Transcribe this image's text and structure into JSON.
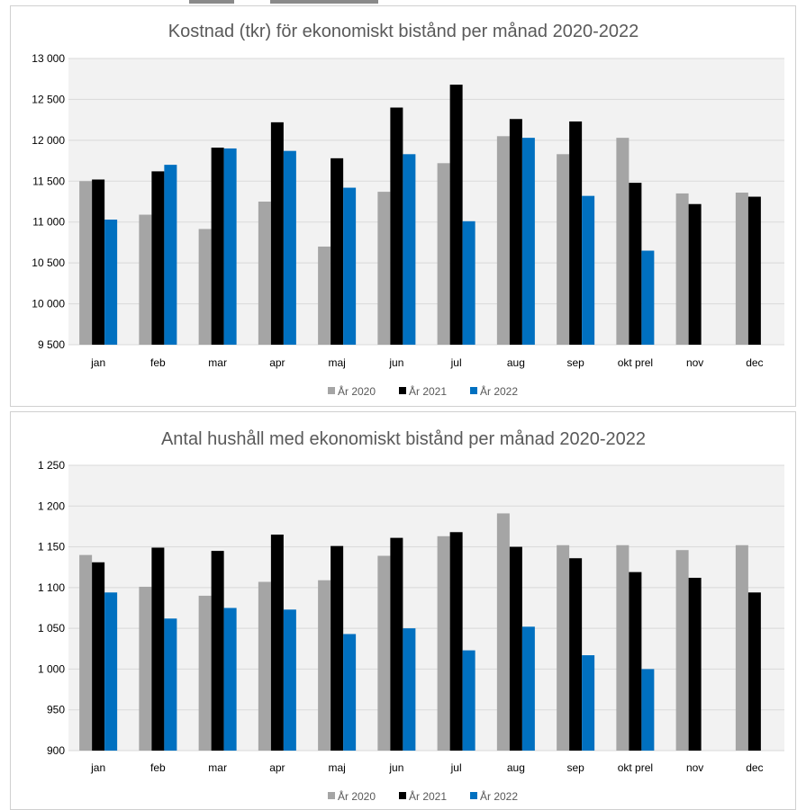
{
  "colors": {
    "ar2020": "#a5a5a5",
    "ar2021": "#000000",
    "ar2022": "#0070c0",
    "plot_bg": "#f2f2f2",
    "grid": "#d9d9d9"
  },
  "chart_data": [
    {
      "type": "bar",
      "title": "Kostnad (tkr) för ekonomiskt bistånd per månad 2020-2022",
      "categories": [
        "jan",
        "feb",
        "mar",
        "apr",
        "maj",
        "jun",
        "jul",
        "aug",
        "sep",
        "okt prel",
        "nov",
        "dec"
      ],
      "ylim": [
        9500,
        13000
      ],
      "ytick_labels": [
        "9 500",
        "10 000",
        "10 500",
        "11 000",
        "11 500",
        "12 000",
        "12 500",
        "13 000"
      ],
      "ytick_values": [
        9500,
        10000,
        10500,
        11000,
        11500,
        12000,
        12500,
        13000
      ],
      "legend_position": "bottom",
      "grid": true,
      "series": [
        {
          "name": "År 2020",
          "color_key": "ar2020",
          "values": [
            11500,
            11090,
            10915,
            11250,
            10700,
            11370,
            11720,
            12050,
            11830,
            12030,
            11350,
            11360
          ]
        },
        {
          "name": "År 2021",
          "color_key": "ar2021",
          "values": [
            11520,
            11620,
            11910,
            12220,
            11780,
            12400,
            12680,
            12260,
            12230,
            11480,
            11220,
            11310
          ]
        },
        {
          "name": "År 2022",
          "color_key": "ar2022",
          "values": [
            11030,
            11700,
            11900,
            11870,
            11420,
            11830,
            11010,
            12030,
            11320,
            10650,
            null,
            null
          ]
        }
      ]
    },
    {
      "type": "bar",
      "title": "Antal hushåll med ekonomiskt bistånd per månad 2020-2022",
      "categories": [
        "jan",
        "feb",
        "mar",
        "apr",
        "maj",
        "jun",
        "jul",
        "aug",
        "sep",
        "okt prel",
        "nov",
        "dec"
      ],
      "ylim": [
        900,
        1250
      ],
      "ytick_labels": [
        "900",
        "950",
        "1 000",
        "1 050",
        "1 100",
        "1 150",
        "1 200",
        "1 250"
      ],
      "ytick_values": [
        900,
        950,
        1000,
        1050,
        1100,
        1150,
        1200,
        1250
      ],
      "legend_position": "bottom",
      "grid": true,
      "series": [
        {
          "name": "År 2020",
          "color_key": "ar2020",
          "values": [
            1140,
            1101,
            1090,
            1107,
            1109,
            1139,
            1163,
            1191,
            1152,
            1152,
            1146,
            1152
          ]
        },
        {
          "name": "År 2021",
          "color_key": "ar2021",
          "values": [
            1131,
            1149,
            1145,
            1165,
            1151,
            1161,
            1168,
            1150,
            1136,
            1119,
            1112,
            1094
          ]
        },
        {
          "name": "År 2022",
          "color_key": "ar2022",
          "values": [
            1094,
            1062,
            1075,
            1073,
            1043,
            1050,
            1023,
            1052,
            1017,
            1000,
            null,
            null
          ]
        }
      ]
    }
  ]
}
